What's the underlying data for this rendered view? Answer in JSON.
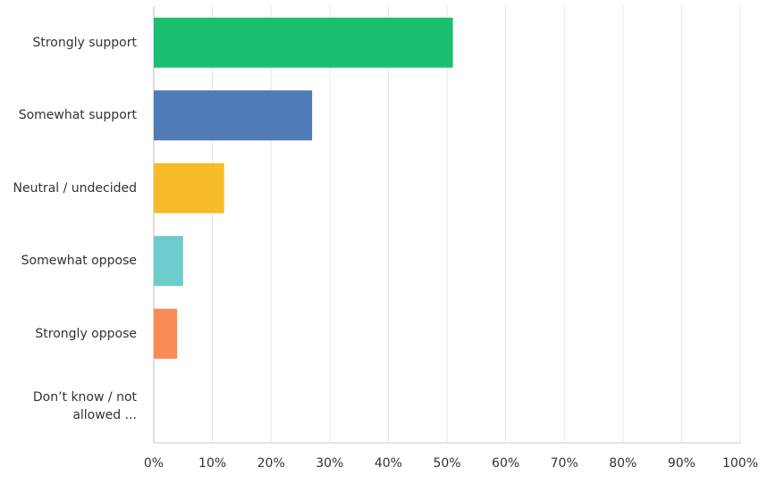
{
  "chart_data": {
    "type": "bar",
    "orientation": "horizontal",
    "categories": [
      "Strongly support",
      "Somewhat support",
      "Neutral / undecided",
      "Somewhat oppose",
      "Strongly oppose",
      "Don’t know / not allowed ..."
    ],
    "values": [
      51,
      27,
      12,
      5,
      4,
      0
    ],
    "colors": [
      "#1abf6f",
      "#4f7cb8",
      "#f6bb26",
      "#6ecbcb",
      "#f98b57",
      "#a58acb"
    ],
    "xlim": [
      0,
      100
    ],
    "xticks": [
      {
        "value": 0,
        "label": "0%"
      },
      {
        "value": 10,
        "label": "10%"
      },
      {
        "value": 20,
        "label": "20%"
      },
      {
        "value": 30,
        "label": "30%"
      },
      {
        "value": 40,
        "label": "40%"
      },
      {
        "value": 50,
        "label": "50%"
      },
      {
        "value": 60,
        "label": "60%"
      },
      {
        "value": 70,
        "label": "70%"
      },
      {
        "value": 80,
        "label": "80%"
      },
      {
        "value": 90,
        "label": "90%"
      },
      {
        "value": 100,
        "label": "100%"
      }
    ],
    "grid": true
  }
}
